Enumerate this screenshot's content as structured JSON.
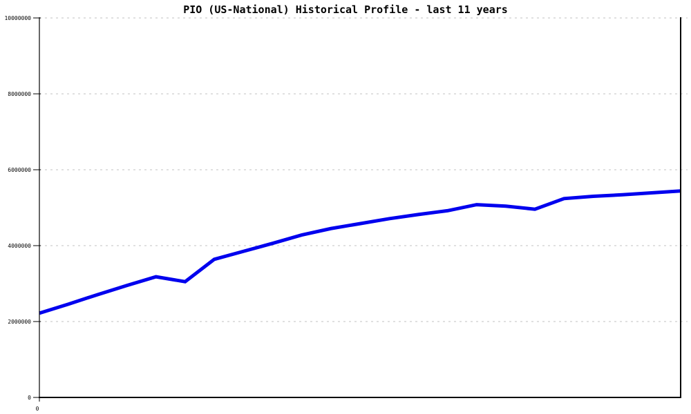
{
  "page": {
    "background": "#ffffff"
  },
  "chart_data": {
    "type": "line",
    "title": "PIO (US-National) Historical Profile - last 11 years",
    "xlabel": "",
    "ylabel": "",
    "x": [
      0,
      1,
      2,
      3,
      4,
      5,
      6,
      7,
      8,
      9,
      10,
      11,
      12,
      13,
      14,
      15,
      16,
      17,
      18,
      19,
      20,
      21,
      22
    ],
    "series": [
      {
        "name": "PIO (US-National)",
        "color": "#0000ee",
        "values": [
          2220000,
          2460000,
          2710000,
          2950000,
          3180000,
          3050000,
          3640000,
          3850000,
          4060000,
          4280000,
          4450000,
          4580000,
          4710000,
          4820000,
          4920000,
          5080000,
          5040000,
          4960000,
          5240000,
          5300000,
          5340000,
          5390000,
          5440000
        ]
      }
    ],
    "ylim": [
      0,
      10000000
    ],
    "yticks": [
      {
        "value": 0,
        "label": "0"
      },
      {
        "value": 2000000,
        "label": "2000000"
      },
      {
        "value": 4000000,
        "label": "4000000"
      },
      {
        "value": 6000000,
        "label": "6000000"
      },
      {
        "value": 8000000,
        "label": "8000000"
      },
      {
        "value": 10000000,
        "label": "10000000"
      }
    ],
    "xticks": [
      {
        "position": 0,
        "label": "0"
      }
    ],
    "grid": "horizontal-dashed",
    "legend_position": "none",
    "colors": {
      "line": "#0000ee",
      "grid": "#c0c0c0",
      "axis": "#000000",
      "text": "#000000"
    }
  }
}
